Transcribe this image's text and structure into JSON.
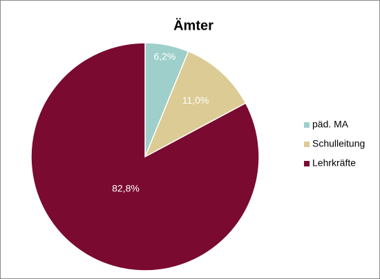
{
  "chart_data": {
    "type": "pie",
    "title": "Ämter",
    "categories": [
      "päd. MA",
      "Schulleitung",
      "Lehrkräfte"
    ],
    "values": [
      6.2,
      11.0,
      82.8
    ],
    "value_labels": [
      "6,2%",
      "11,0%",
      "82,8%"
    ],
    "colors": [
      "#9ecfca",
      "#dccb94",
      "#7a0a30"
    ],
    "legend": "right"
  }
}
